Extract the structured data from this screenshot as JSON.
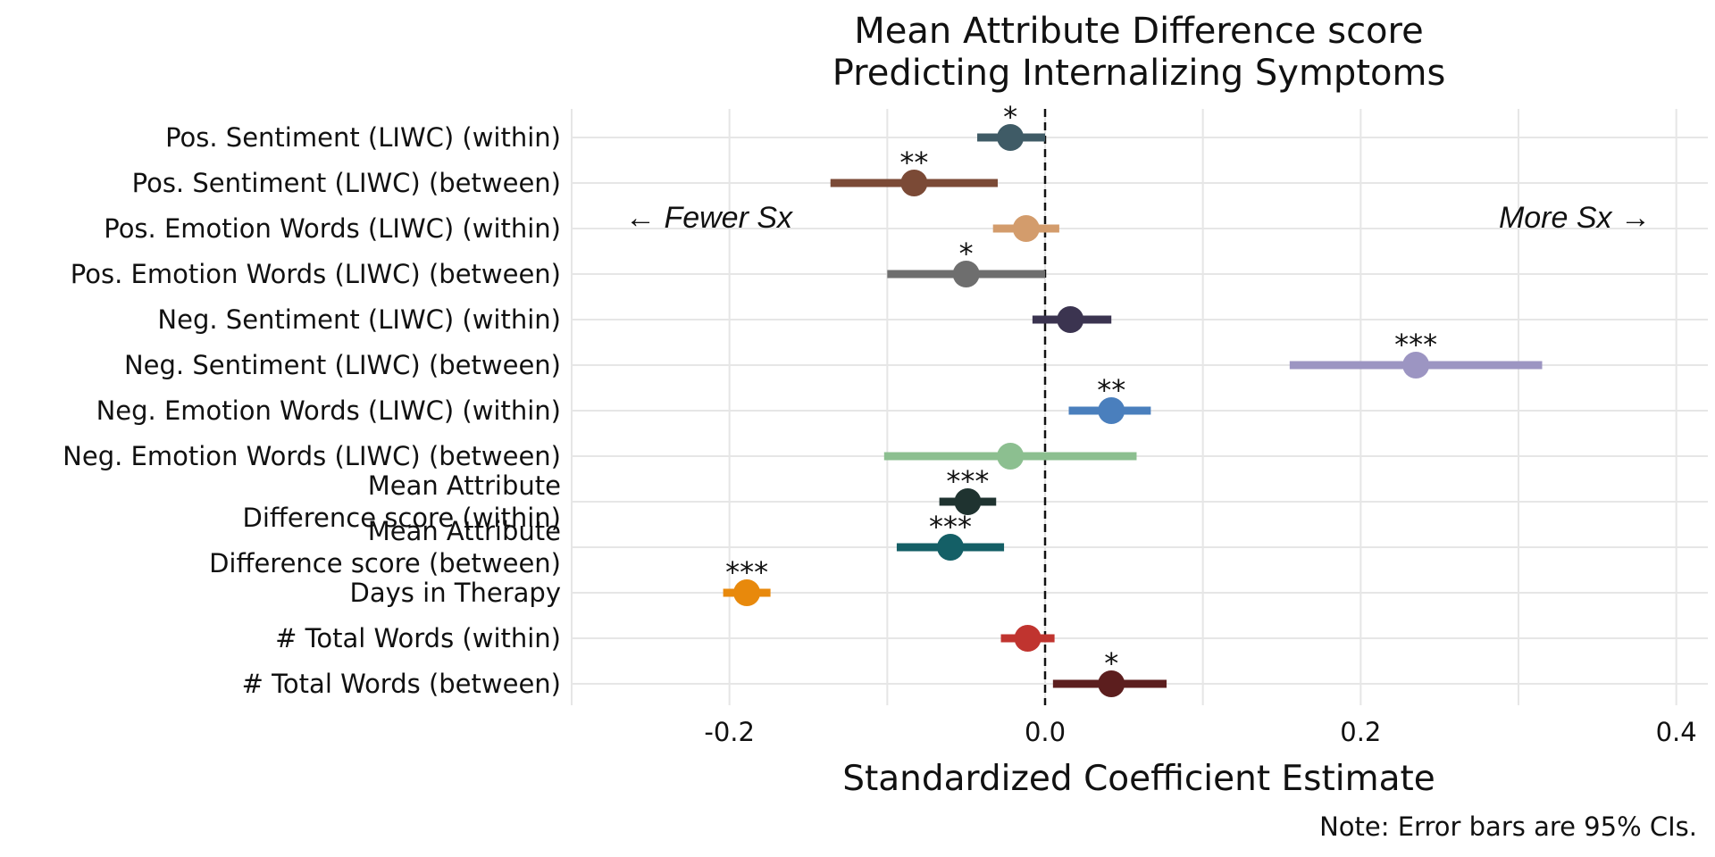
{
  "chart_data": {
    "type": "scatter",
    "title_lines": [
      "Mean Attribute Difference score",
      "Predicting Internalizing Symptoms"
    ],
    "xlabel": "Standardized Coefficient Estimate",
    "note": "Note: Error bars are 95% CIs.",
    "xlim": [
      -0.3,
      0.42
    ],
    "xticks": [
      -0.2,
      0.0,
      0.2,
      0.4
    ],
    "xtick_labels": [
      "-0.2",
      "0.0",
      "0.2",
      "0.4"
    ],
    "reference_line": 0.0,
    "grid": true,
    "annotations": {
      "left": "← Fewer Sx",
      "right": "More Sx →"
    },
    "terms": [
      {
        "label": [
          "Pos. Sentiment (LIWC) (within)"
        ],
        "estimate": -0.022,
        "ci": [
          -0.043,
          0.0
        ],
        "sig": "*",
        "color": "#3f5b66"
      },
      {
        "label": [
          "Pos. Sentiment (LIWC) (between)"
        ],
        "estimate": -0.083,
        "ci": [
          -0.136,
          -0.03
        ],
        "sig": "**",
        "color": "#7b4a36"
      },
      {
        "label": [
          "Pos. Emotion Words (LIWC) (within)"
        ],
        "estimate": -0.012,
        "ci": [
          -0.033,
          0.009
        ],
        "sig": "",
        "color": "#d39c6c"
      },
      {
        "label": [
          "Pos. Emotion Words (LIWC) (between)"
        ],
        "estimate": -0.05,
        "ci": [
          -0.1,
          0.0
        ],
        "sig": "*",
        "color": "#6e6e6e"
      },
      {
        "label": [
          "Neg. Sentiment (LIWC) (within)"
        ],
        "estimate": 0.016,
        "ci": [
          -0.008,
          0.042
        ],
        "sig": "",
        "color": "#3b3450"
      },
      {
        "label": [
          "Neg. Sentiment (LIWC) (between)"
        ],
        "estimate": 0.235,
        "ci": [
          0.155,
          0.315
        ],
        "sig": "***",
        "color": "#9c95c2"
      },
      {
        "label": [
          "Neg. Emotion Words (LIWC) (within)"
        ],
        "estimate": 0.042,
        "ci": [
          0.015,
          0.067
        ],
        "sig": "**",
        "color": "#4a7fbd"
      },
      {
        "label": [
          "Neg. Emotion Words (LIWC) (between)"
        ],
        "estimate": -0.022,
        "ci": [
          -0.102,
          0.058
        ],
        "sig": "",
        "color": "#8cbf90"
      },
      {
        "label": [
          "Mean Attribute",
          "Difference score (within)"
        ],
        "estimate": -0.049,
        "ci": [
          -0.067,
          -0.031
        ],
        "sig": "***",
        "color": "#1f3330"
      },
      {
        "label": [
          "Mean Attribute",
          "Difference score (between)"
        ],
        "estimate": -0.06,
        "ci": [
          -0.094,
          -0.026
        ],
        "sig": "***",
        "color": "#145f66"
      },
      {
        "label": [
          "Days in Therapy"
        ],
        "estimate": -0.189,
        "ci": [
          -0.204,
          -0.174
        ],
        "sig": "***",
        "color": "#e8890c"
      },
      {
        "label": [
          "# Total Words (within)"
        ],
        "estimate": -0.011,
        "ci": [
          -0.028,
          0.006
        ],
        "sig": "",
        "color": "#c0342f"
      },
      {
        "label": [
          "# Total Words (between)"
        ],
        "estimate": 0.042,
        "ci": [
          0.005,
          0.077
        ],
        "sig": "*",
        "color": "#5c1e1e"
      }
    ]
  }
}
